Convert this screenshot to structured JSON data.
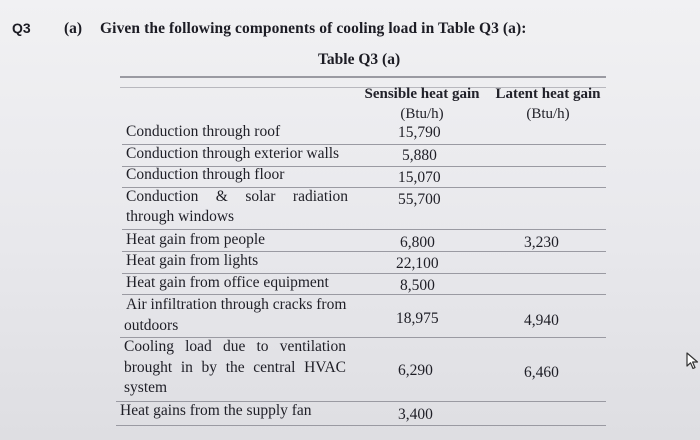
{
  "question": {
    "number": "Q3",
    "part": "(a)",
    "prompt": "Given the following components of cooling load in Table Q3 (a):"
  },
  "table": {
    "title": "Table Q3 (a)",
    "headers": {
      "sensible": "Sensible heat gain",
      "sensible_unit": "(Btu/h)",
      "latent": "Latent heat gain",
      "latent_unit": "(Btu/h)"
    },
    "rows": [
      {
        "label": [
          "Conduction through roof"
        ],
        "sensible": "15,790",
        "latent": ""
      },
      {
        "label": [
          "Conduction through exterior walls"
        ],
        "sensible": "5,880",
        "latent": ""
      },
      {
        "label": [
          "Conduction through floor"
        ],
        "sensible": "15,070",
        "latent": ""
      },
      {
        "label": [
          "Conduction & solar radiation",
          "through windows"
        ],
        "sensible": "55,700",
        "latent": ""
      },
      {
        "label": [
          "Heat gain from people"
        ],
        "sensible": "6,800",
        "latent": "3,230"
      },
      {
        "label": [
          "Heat gain from lights"
        ],
        "sensible": "22,100",
        "latent": ""
      },
      {
        "label": [
          "Heat gain from office equipment"
        ],
        "sensible": "8,500",
        "latent": ""
      },
      {
        "label": [
          "Air infiltration through cracks from",
          "outdoors"
        ],
        "sensible": "18,975",
        "latent": "4,940"
      },
      {
        "label": [
          "Cooling load due to ventilation",
          "brought in by the central HVAC",
          "system"
        ],
        "sensible": "6,290",
        "latent": "6,460"
      },
      {
        "label": [
          "Heat gains from the supply fan"
        ],
        "sensible": "3,400",
        "latent": ""
      }
    ]
  },
  "cursor_icon": "mouse-pointer-icon"
}
